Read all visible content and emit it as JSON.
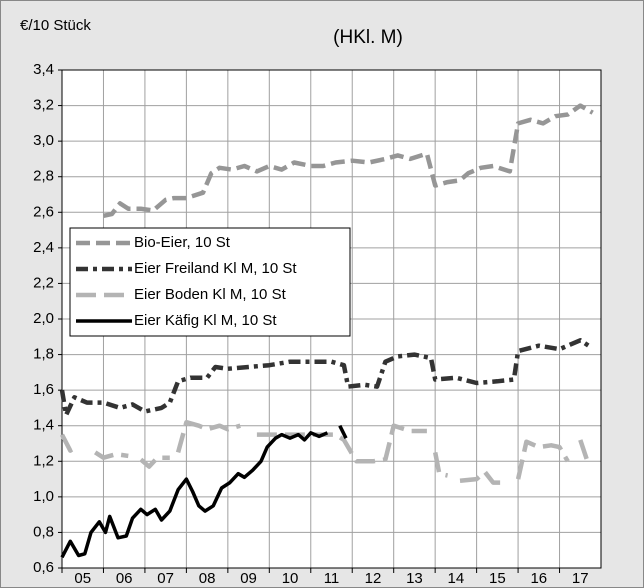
{
  "chart_data": {
    "type": "line",
    "title": "(HKl. M)",
    "y_label": "€/10 Stück",
    "xlim": [
      2005,
      2018
    ],
    "xticks": [
      {
        "value": 2005,
        "label": "05"
      },
      {
        "value": 2006,
        "label": "06"
      },
      {
        "value": 2007,
        "label": "07"
      },
      {
        "value": 2008,
        "label": "08"
      },
      {
        "value": 2009,
        "label": "09"
      },
      {
        "value": 2010,
        "label": "10"
      },
      {
        "value": 2011,
        "label": "11"
      },
      {
        "value": 2012,
        "label": "12"
      },
      {
        "value": 2013,
        "label": "13"
      },
      {
        "value": 2014,
        "label": "14"
      },
      {
        "value": 2015,
        "label": "15"
      },
      {
        "value": 2016,
        "label": "16"
      },
      {
        "value": 2017,
        "label": "17"
      }
    ],
    "ylim": [
      0.6,
      3.4
    ],
    "yticks": [
      {
        "value": 0.6,
        "label": "0,6"
      },
      {
        "value": 0.8,
        "label": "0,8"
      },
      {
        "value": 1.0,
        "label": "1,0"
      },
      {
        "value": 1.2,
        "label": "1,2"
      },
      {
        "value": 1.4,
        "label": "1,4"
      },
      {
        "value": 1.6,
        "label": "1,6"
      },
      {
        "value": 1.8,
        "label": "1,8"
      },
      {
        "value": 2.0,
        "label": "2,0"
      },
      {
        "value": 2.2,
        "label": "2,2"
      },
      {
        "value": 2.4,
        "label": "2,4"
      },
      {
        "value": 2.6,
        "label": "2,6"
      },
      {
        "value": 2.8,
        "label": "2,8"
      },
      {
        "value": 3.0,
        "label": "3,0"
      },
      {
        "value": 3.2,
        "label": "3,2"
      },
      {
        "value": 3.4,
        "label": "3,4"
      }
    ],
    "grid": true,
    "legend": "center left",
    "series": [
      {
        "name": "Bio-Eier, 10 St",
        "color": "#969696",
        "line_style": "dashed",
        "x": [
          2006.0,
          2006.2,
          2006.4,
          2006.6,
          2006.9,
          2007.2,
          2007.5,
          2007.7,
          2008.0,
          2008.4,
          2008.6,
          2008.8,
          2009.1,
          2009.4,
          2009.7,
          2010.0,
          2010.3,
          2010.6,
          2011.0,
          2011.3,
          2011.6,
          2012.0,
          2012.4,
          2012.8,
          2013.1,
          2013.4,
          2013.8,
          2014.0,
          2014.3,
          2014.6,
          2014.8,
          2015.1,
          2015.4,
          2015.8,
          2016.0,
          2016.3,
          2016.6,
          2016.9,
          2017.2,
          2017.5,
          2017.8
        ],
        "values": [
          2.58,
          2.59,
          2.65,
          2.62,
          2.62,
          2.61,
          2.67,
          2.68,
          2.68,
          2.71,
          2.82,
          2.85,
          2.84,
          2.86,
          2.83,
          2.86,
          2.84,
          2.88,
          2.86,
          2.86,
          2.88,
          2.89,
          2.88,
          2.9,
          2.92,
          2.9,
          2.93,
          2.75,
          2.77,
          2.78,
          2.82,
          2.85,
          2.86,
          2.83,
          3.1,
          3.12,
          3.1,
          3.14,
          3.15,
          3.2,
          3.16
        ]
      },
      {
        "name": "Eier Freiland Kl M, 10 St",
        "color": "#333333",
        "line_style": "dashdot",
        "x": [
          2005.0,
          2005.1,
          2005.3,
          2005.6,
          2006.0,
          2006.4,
          2006.7,
          2007.0,
          2007.4,
          2007.6,
          2007.8,
          2008.1,
          2008.5,
          2008.7,
          2009.0,
          2009.5,
          2010.0,
          2010.5,
          2011.0,
          2011.5,
          2011.8,
          2011.9,
          2012.3,
          2012.6,
          2012.8,
          2013.1,
          2013.5,
          2013.9,
          2014.0,
          2014.5,
          2015.0,
          2015.5,
          2015.9,
          2016.0,
          2016.5,
          2017.0,
          2017.5,
          2017.7
        ],
        "values": [
          1.6,
          1.46,
          1.56,
          1.53,
          1.53,
          1.5,
          1.52,
          1.48,
          1.5,
          1.53,
          1.65,
          1.67,
          1.67,
          1.73,
          1.72,
          1.73,
          1.74,
          1.76,
          1.76,
          1.76,
          1.74,
          1.62,
          1.63,
          1.62,
          1.76,
          1.79,
          1.8,
          1.78,
          1.66,
          1.67,
          1.64,
          1.65,
          1.66,
          1.82,
          1.85,
          1.83,
          1.88,
          1.85
        ]
      },
      {
        "name": "Eier Boden Kl M, 10 St",
        "color": "#b4b4b4",
        "line_style": "longdash",
        "x": [
          2005.0,
          2005.2,
          2005.4,
          2005.6,
          2005.8,
          2006.0,
          2006.3,
          2006.6,
          2006.75,
          2006.9,
          2007.1,
          2007.3,
          2007.6,
          2007.7,
          2007.8,
          2008.0,
          2008.3,
          2008.5,
          2008.8,
          2009.0,
          2009.3,
          2009.5,
          2009.7,
          2010.5,
          2011.0,
          2011.6,
          2011.8,
          2012.1,
          2012.5,
          2012.8,
          2013.0,
          2013.4,
          2013.8,
          2013.9,
          2014.0,
          2014.1,
          2014.3,
          2014.45,
          2014.6,
          2015.0,
          2015.2,
          2015.4,
          2015.6,
          2015.8,
          2016.0,
          2016.2,
          2016.5,
          2016.8,
          2017.0,
          2017.2,
          2017.35,
          2017.5,
          2017.7
        ],
        "values": [
          1.35,
          1.26,
          1.29,
          null,
          1.25,
          1.22,
          1.24,
          1.23,
          null,
          1.21,
          1.17,
          1.22,
          1.22,
          null,
          1.25,
          1.42,
          1.4,
          1.38,
          1.4,
          1.38,
          1.4,
          null,
          1.35,
          1.35,
          1.35,
          1.35,
          1.32,
          1.2,
          1.2,
          1.21,
          1.4,
          1.37,
          1.37,
          null,
          1.25,
          1.13,
          1.12,
          null,
          1.09,
          1.1,
          1.14,
          1.08,
          1.08,
          null,
          1.1,
          1.31,
          1.28,
          1.29,
          1.28,
          1.2,
          null,
          1.32,
          1.18
        ]
      },
      {
        "name": "Eier Käfig Kl M, 10 St",
        "color": "#000000",
        "line_style": "solid",
        "x": [
          2005.0,
          2005.2,
          2005.4,
          2005.55,
          2005.7,
          2005.9,
          2006.05,
          2006.15,
          2006.35,
          2006.55,
          2006.7,
          2006.9,
          2007.05,
          2007.25,
          2007.4,
          2007.6,
          2007.8,
          2008.0,
          2008.15,
          2008.3,
          2008.45,
          2008.65,
          2008.85,
          2009.05,
          2009.25,
          2009.4,
          2009.6,
          2009.8,
          2009.95,
          2010.15,
          2010.3,
          2010.5,
          2010.7,
          2010.85,
          2011.0,
          2011.2,
          2011.4,
          2011.55,
          2011.7,
          2011.85
        ],
        "values": [
          0.66,
          0.75,
          0.67,
          0.68,
          0.8,
          0.86,
          0.8,
          0.89,
          0.77,
          0.78,
          0.88,
          0.93,
          0.9,
          0.93,
          0.87,
          0.92,
          1.04,
          1.1,
          1.03,
          0.95,
          0.92,
          0.95,
          1.05,
          1.08,
          1.13,
          1.11,
          1.15,
          1.2,
          1.28,
          1.33,
          1.35,
          1.33,
          1.35,
          1.32,
          1.36,
          1.34,
          1.36,
          null,
          1.4,
          1.33
        ]
      }
    ]
  }
}
